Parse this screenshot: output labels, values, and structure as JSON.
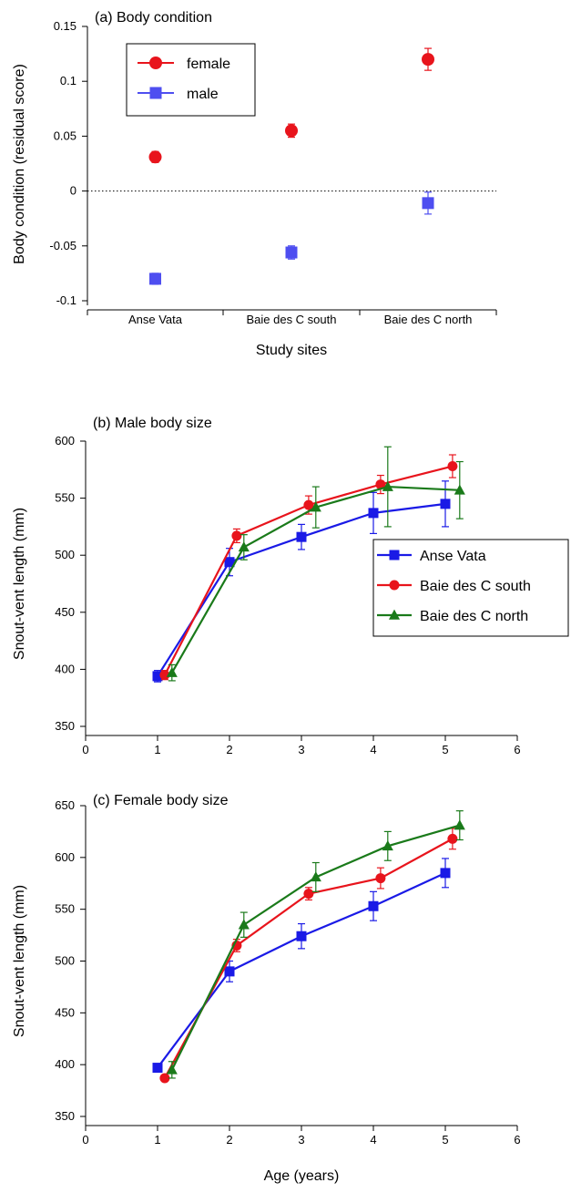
{
  "chart_data": [
    {
      "type": "scatter",
      "title": "(a) Body condition",
      "xlabel": "Study sites",
      "ylabel": "Body condition (residual score)",
      "categories": [
        "Anse Vata",
        "Baie des C south",
        "Baie des C north"
      ],
      "ylim": [
        -0.1,
        0.15
      ],
      "yticks": [
        "-0.1",
        "-0.05",
        "0",
        "0.05",
        "0.1",
        "0.15"
      ],
      "reference_line": 0,
      "legend_position": "top-left",
      "series": [
        {
          "name": "female",
          "marker": "circle",
          "color": "#e8141c",
          "values": [
            0.031,
            0.055,
            0.12
          ],
          "errors": [
            0.005,
            0.006,
            0.01
          ]
        },
        {
          "name": "male",
          "marker": "square",
          "color": "#4e4ef0",
          "values": [
            -0.08,
            -0.056,
            -0.011
          ],
          "errors": [
            0.005,
            0.006,
            0.01
          ]
        }
      ]
    },
    {
      "type": "line",
      "title": "(b) Male body size",
      "xlabel": "",
      "ylabel": "Snout-vent length (mm)",
      "xlim": [
        0,
        6
      ],
      "ylim": [
        350,
        600
      ],
      "xticks": [
        "0",
        "1",
        "2",
        "3",
        "4",
        "5",
        "6"
      ],
      "yticks": [
        "350",
        "400",
        "450",
        "500",
        "550",
        "600"
      ],
      "legend_position": "right",
      "series": [
        {
          "name": "Anse Vata",
          "marker": "square",
          "color": "#1a1ae6",
          "x": [
            1,
            2,
            3,
            4,
            5
          ],
          "y": [
            394,
            494,
            516,
            537,
            545
          ],
          "errors": [
            5,
            12,
            11,
            18,
            20
          ]
        },
        {
          "name": "Baie des C south",
          "marker": "circle",
          "color": "#e8141c",
          "x": [
            1.1,
            2.1,
            3.1,
            4.1,
            5.1
          ],
          "y": [
            395,
            517,
            544,
            562,
            578
          ],
          "errors": [
            4,
            6,
            8,
            8,
            10
          ]
        },
        {
          "name": "Baie des C north",
          "marker": "triangle",
          "color": "#1a7a1a",
          "x": [
            1.2,
            2.2,
            3.2,
            4.2,
            5.2
          ],
          "y": [
            397,
            507,
            542,
            560,
            557
          ],
          "errors": [
            7,
            11,
            18,
            35,
            25
          ]
        }
      ]
    },
    {
      "type": "line",
      "title": "(c) Female body size",
      "xlabel": "Age (years)",
      "ylabel": "Snout-vent length (mm)",
      "xlim": [
        0,
        6
      ],
      "ylim": [
        350,
        650
      ],
      "xticks": [
        "0",
        "1",
        "2",
        "3",
        "4",
        "5",
        "6"
      ],
      "yticks": [
        "350",
        "400",
        "450",
        "500",
        "550",
        "600",
        "650"
      ],
      "series": [
        {
          "name": "Anse Vata",
          "marker": "square",
          "color": "#1a1ae6",
          "x": [
            1,
            2,
            3,
            4,
            5
          ],
          "y": [
            397,
            490,
            524,
            553,
            585
          ],
          "errors": [
            0,
            10,
            12,
            14,
            14
          ]
        },
        {
          "name": "Baie des C south",
          "marker": "circle",
          "color": "#e8141c",
          "x": [
            1.1,
            2.1,
            3.1,
            4.1,
            5.1
          ],
          "y": [
            387,
            515,
            565,
            580,
            618
          ],
          "errors": [
            0,
            6,
            6,
            10,
            10
          ]
        },
        {
          "name": "Baie des C north",
          "marker": "triangle",
          "color": "#1a7a1a",
          "x": [
            1.2,
            2.2,
            3.2,
            4.2,
            5.2
          ],
          "y": [
            395,
            535,
            581,
            611,
            631
          ],
          "errors": [
            8,
            12,
            14,
            14,
            14
          ]
        }
      ]
    }
  ]
}
